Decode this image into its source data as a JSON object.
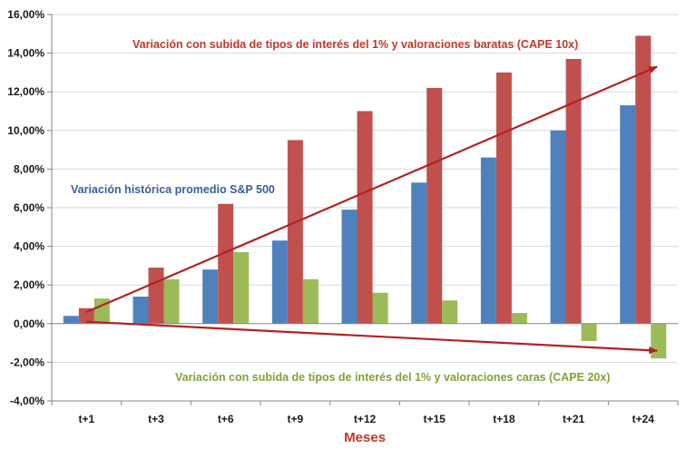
{
  "chart_data": {
    "type": "bar",
    "title": "",
    "xlabel": "Meses",
    "ylabel": "",
    "ylim": [
      -4,
      16
    ],
    "ytick_step": 2,
    "ytick_labels": [
      "-4,00%",
      "-2,00%",
      "0,00%",
      "2,00%",
      "4,00%",
      "6,00%",
      "8,00%",
      "10,00%",
      "12,00%",
      "14,00%",
      "16,00%"
    ],
    "categories": [
      "t+1",
      "t+3",
      "t+6",
      "t+9",
      "t+12",
      "t+15",
      "t+18",
      "t+21",
      "t+24"
    ],
    "grid": true,
    "series": [
      {
        "name": "Variación histórica promedio S&P 500",
        "color": "#4F81BD",
        "values": [
          0.4,
          1.4,
          2.8,
          4.3,
          5.9,
          7.3,
          8.6,
          10.0,
          11.3
        ]
      },
      {
        "name": "Variación con subida de tipos de interés del 1% y valoraciones baratas (CAPE 10x)",
        "color": "#C0504D",
        "values": [
          0.8,
          2.9,
          6.2,
          9.5,
          11.0,
          12.2,
          13.0,
          13.7,
          14.9
        ]
      },
      {
        "name": "Variación con subida de tipos de interés del 1% y valoraciones caras (CAPE 20x)",
        "color": "#9BBB59",
        "values": [
          1.3,
          2.3,
          3.7,
          2.3,
          1.6,
          1.2,
          0.55,
          -0.9,
          -1.8
        ]
      }
    ],
    "annotations": [
      {
        "text": "Variación con subida de tipos de interés del 1% y valoraciones baratas (CAPE 10x)",
        "color": "#C0392B"
      },
      {
        "text": "Variación histórica promedio S&P 500",
        "color": "#3A5FA0"
      },
      {
        "text": "Variación con subida de tipos de interés del 1% y valoraciones caras (CAPE 20x)",
        "color": "#7FA23A"
      }
    ],
    "xlabel_color": "#C0392B",
    "trend_arrows": [
      {
        "name": "up-trend",
        "from": [
          0,
          0.6
        ],
        "to": [
          8.2,
          13.3
        ],
        "color": "#B22222"
      },
      {
        "name": "down-trend",
        "from": [
          0,
          0.1
        ],
        "to": [
          8.2,
          -1.4
        ],
        "color": "#B22222"
      }
    ]
  }
}
